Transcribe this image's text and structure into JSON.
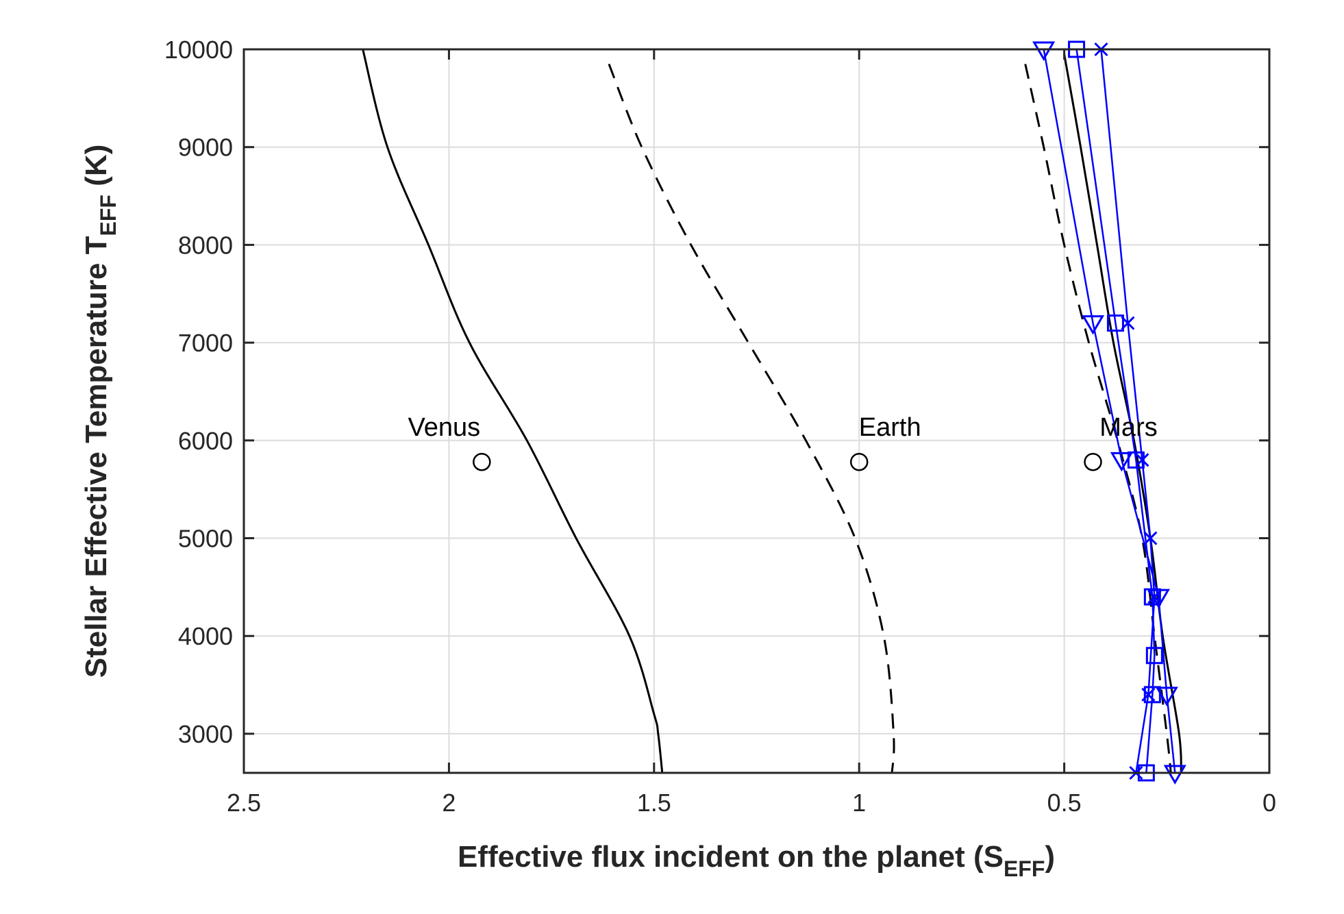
{
  "chart_data": {
    "type": "line",
    "xlabel": "Effective flux incident on the planet (S",
    "xlabel_sub": "EFF",
    "xlabel_end": ")",
    "ylabel": "Stellar Effective Temperature T",
    "ylabel_sub": "EFF",
    "ylabel_end": " (K)",
    "xlim": [
      2.5,
      0
    ],
    "x_reversed": true,
    "ylim": [
      2600,
      10000
    ],
    "xticks": [
      2.5,
      2,
      1.5,
      1,
      0.5,
      0
    ],
    "xtick_labels": [
      "2.5",
      "2",
      "1.5",
      "1",
      "0.5",
      "0"
    ],
    "yticks": [
      3000,
      4000,
      5000,
      6000,
      7000,
      8000,
      9000,
      10000
    ],
    "ytick_labels": [
      "3000",
      "4000",
      "5000",
      "6000",
      "7000",
      "8000",
      "9000",
      "10000"
    ],
    "grid": true,
    "colors": {
      "black": "#000000",
      "blue": "#0000ff",
      "grid": "#dcdcdc",
      "axis": "#262626"
    },
    "curves": [
      {
        "style": "solid",
        "color": "#000000",
        "points": [
          [
            2.21,
            10000
          ],
          [
            2.15,
            9000
          ],
          [
            2.05,
            8000
          ],
          [
            1.95,
            7000
          ],
          [
            1.81,
            6000
          ],
          [
            1.69,
            5000
          ],
          [
            1.56,
            4000
          ],
          [
            1.5,
            3200
          ],
          [
            1.49,
            3000
          ],
          [
            1.48,
            2600
          ]
        ]
      },
      {
        "style": "dashed",
        "color": "#000000",
        "points": [
          [
            1.61,
            9850
          ],
          [
            1.53,
            9000
          ],
          [
            1.41,
            8000
          ],
          [
            1.27,
            7000
          ],
          [
            1.13,
            6000
          ],
          [
            1.01,
            5000
          ],
          [
            0.94,
            4000
          ],
          [
            0.916,
            3000
          ],
          [
            0.92,
            2600
          ]
        ]
      },
      {
        "style": "dashed",
        "color": "#000000",
        "points": [
          [
            0.595,
            9850
          ],
          [
            0.55,
            9000
          ],
          [
            0.5,
            8000
          ],
          [
            0.44,
            7000
          ],
          [
            0.37,
            6000
          ],
          [
            0.31,
            5000
          ],
          [
            0.28,
            4000
          ],
          [
            0.25,
            3000
          ],
          [
            0.24,
            2600
          ]
        ]
      },
      {
        "style": "solid",
        "color": "#000000",
        "points": [
          [
            0.5,
            9950
          ],
          [
            0.46,
            9000
          ],
          [
            0.42,
            8000
          ],
          [
            0.38,
            7000
          ],
          [
            0.33,
            6000
          ],
          [
            0.29,
            5000
          ],
          [
            0.26,
            4000
          ],
          [
            0.22,
            3000
          ],
          [
            0.215,
            2600
          ]
        ]
      }
    ],
    "series": [
      {
        "marker": "triangle-down",
        "color": "#0000ff",
        "points": [
          [
            0.55,
            10000
          ],
          [
            0.43,
            7200
          ],
          [
            0.36,
            5800
          ],
          [
            0.27,
            4400
          ],
          [
            0.25,
            3400
          ],
          [
            0.23,
            2600
          ]
        ]
      },
      {
        "marker": "square",
        "color": "#0000ff",
        "points": [
          [
            0.47,
            10000
          ],
          [
            0.375,
            7200
          ],
          [
            0.325,
            5800
          ],
          [
            0.285,
            4400
          ],
          [
            0.28,
            3800
          ],
          [
            0.285,
            3400
          ],
          [
            0.3,
            2600
          ]
        ]
      },
      {
        "marker": "x",
        "color": "#0000ff",
        "points": [
          [
            0.41,
            10000
          ],
          [
            0.345,
            7200
          ],
          [
            0.31,
            5800
          ],
          [
            0.29,
            5000
          ],
          [
            0.28,
            4400
          ],
          [
            0.295,
            3400
          ],
          [
            0.325,
            2600
          ]
        ]
      }
    ],
    "planets": [
      {
        "label": "Venus",
        "x": 1.92,
        "y": 5780
      },
      {
        "label": "Earth",
        "x": 1.0,
        "y": 5780
      },
      {
        "label": "Mars",
        "x": 0.43,
        "y": 5780
      }
    ]
  }
}
